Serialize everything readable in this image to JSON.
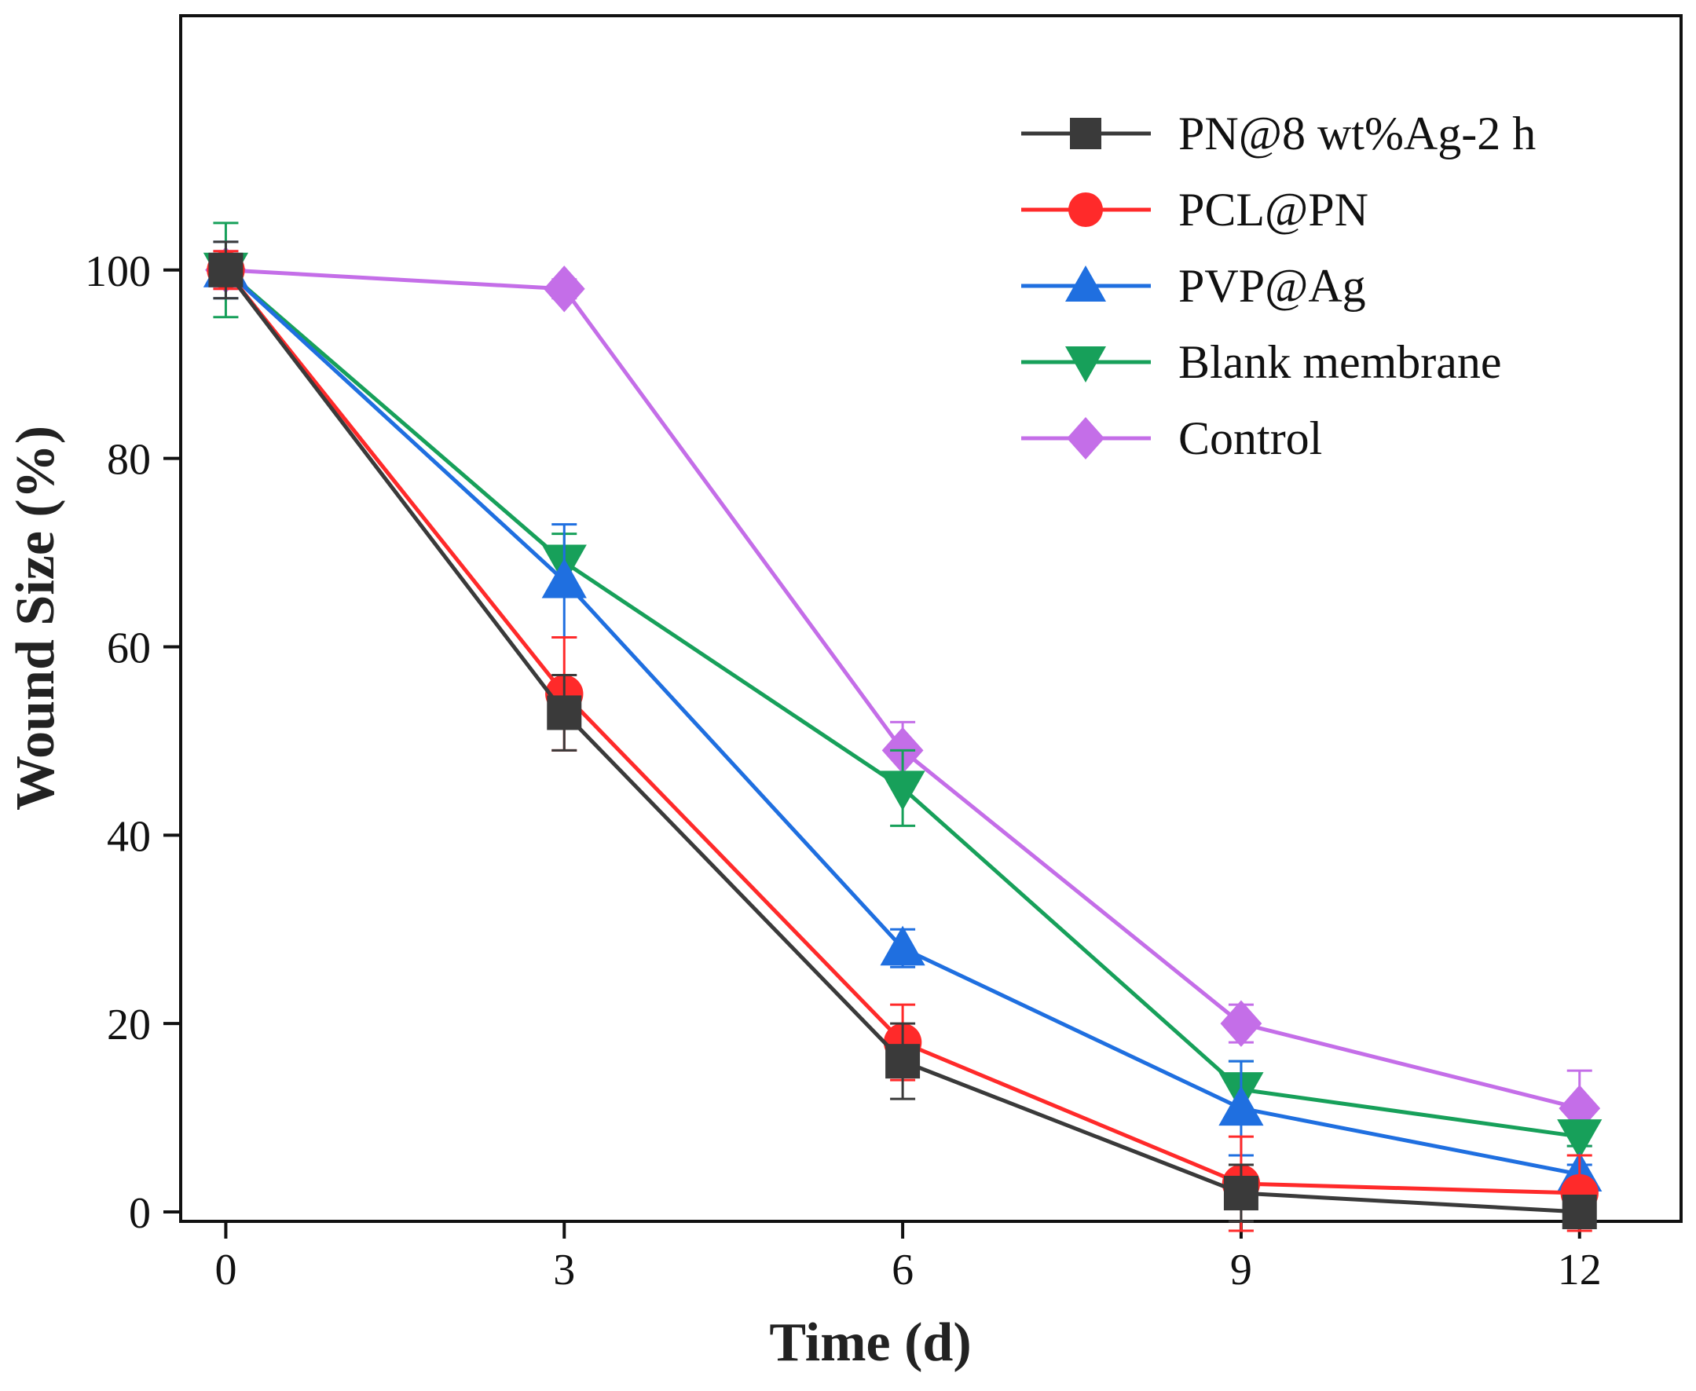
{
  "chart_data": {
    "type": "line",
    "title": "",
    "xlabel": "Time (d)",
    "ylabel": "Wound Size (%)",
    "x": [
      0,
      3,
      6,
      9,
      12
    ],
    "xticks": [
      0,
      3,
      6,
      9,
      12
    ],
    "yticks": [
      0,
      20,
      40,
      60,
      80,
      100
    ],
    "xlim": [
      -0.4,
      12.9
    ],
    "ylim": [
      -1,
      127
    ],
    "grid": false,
    "legend_position": "top-right",
    "series": [
      {
        "name": "PN@8 wt%Ag-2 h",
        "color": "#3a3a3a",
        "marker": "square",
        "values": [
          100,
          53,
          16,
          2,
          0
        ],
        "errors": [
          3,
          4,
          4,
          3,
          0.5
        ]
      },
      {
        "name": "PCL@PN",
        "color": "#ff2a2a",
        "marker": "circle",
        "values": [
          100,
          55,
          18,
          3,
          2
        ],
        "errors": [
          2,
          6,
          4,
          5,
          4
        ]
      },
      {
        "name": "PVP@Ag",
        "color": "#1f6fe0",
        "marker": "triangle-up",
        "values": [
          100,
          67,
          28,
          11,
          4
        ],
        "errors": [
          3,
          6,
          2,
          5,
          1
        ]
      },
      {
        "name": "Blank membrane",
        "color": "#17a05a",
        "marker": "triangle-down",
        "values": [
          100,
          69,
          45,
          13,
          8
        ],
        "errors": [
          5,
          3,
          4,
          3,
          1
        ]
      },
      {
        "name": "Control",
        "color": "#c46ee8",
        "marker": "diamond",
        "values": [
          100,
          98,
          49,
          20,
          11
        ],
        "errors": [
          2,
          1,
          3,
          2,
          4
        ]
      }
    ]
  }
}
